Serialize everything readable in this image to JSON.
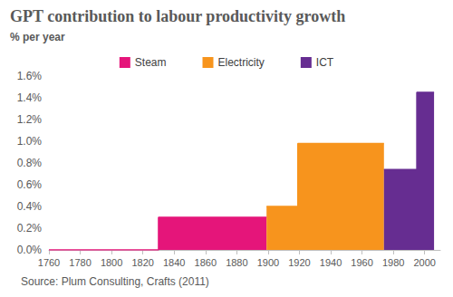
{
  "chart_data": {
    "type": "area",
    "title": "GPT contribution to labour productivity growth",
    "subtitle": "% per year",
    "annotations": [
      "Source: Plum Consulting, Crafts (2011)"
    ],
    "x": [
      1760,
      1830,
      1870,
      1899,
      1919,
      1930,
      1974,
      1995,
      2006
    ],
    "series": [
      {
        "name": "Steam",
        "color": "#e5157a",
        "values": [
          0,
          0.3,
          0.3,
          null,
          null,
          null,
          null,
          null,
          null
        ]
      },
      {
        "name": "Electricity",
        "color": "#f7941d",
        "values": [
          null,
          null,
          null,
          0.4,
          0.98,
          0.98,
          null,
          null,
          null
        ]
      },
      {
        "name": "ICT",
        "color": "#662d91",
        "values": [
          null,
          null,
          null,
          null,
          null,
          null,
          0.74,
          1.45,
          1.45
        ]
      }
    ],
    "xlim": [
      1760,
      2010
    ],
    "xticks": [
      1760,
      1780,
      1800,
      1820,
      1840,
      1860,
      1880,
      1900,
      1920,
      1940,
      1960,
      1980,
      2000
    ],
    "ylim": [
      0,
      1.6
    ],
    "yticks": [
      {
        "value": 0,
        "label": "0.0%"
      },
      {
        "value": 0.2,
        "label": "0.2%"
      },
      {
        "value": 0.4,
        "label": "0.4%"
      },
      {
        "value": 0.6,
        "label": "0.6%"
      },
      {
        "value": 0.8,
        "label": "0.8%"
      },
      {
        "value": 1.0,
        "label": "1.0%"
      },
      {
        "value": 1.2,
        "label": "1.2%"
      },
      {
        "value": 1.4,
        "label": "1.4%"
      },
      {
        "value": 1.6,
        "label": "1.6%"
      }
    ],
    "line_style": "step",
    "legend": "top",
    "grid": false
  }
}
